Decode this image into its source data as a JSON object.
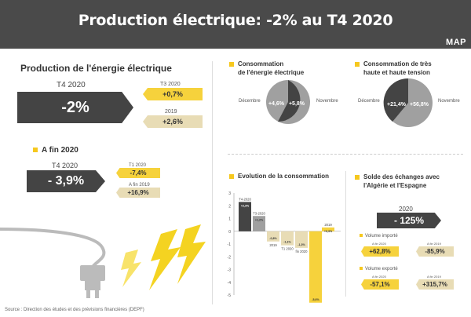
{
  "header": {
    "title": "Production électrique: -2% au T4 2020",
    "logo": "MAP"
  },
  "production": {
    "heading": "Production de l'énergie électrique",
    "period": "T4 2020",
    "value": "-2%",
    "compare1": {
      "label": "T3 2020",
      "value": "+0,7%"
    },
    "compare2": {
      "label": "2019",
      "value": "+2,6%"
    }
  },
  "afin": {
    "heading": "A fin 2020",
    "period": "T4 2020",
    "value": "- 3,9%",
    "compare1": {
      "label": "T1 2020",
      "value": "-7,4%"
    },
    "compare2": {
      "label": "A fin 2019",
      "value": "+16,9%"
    }
  },
  "conso": {
    "heading_line1": "Consommation",
    "heading_line2": "de l'énergie électrique",
    "left_label": "Décembre",
    "right_label": "Novembre",
    "left_value": "+4,6%",
    "right_value": "+5,8%"
  },
  "conso_tht": {
    "heading_line1": "Consommation de très",
    "heading_line2": "haute et haute tension",
    "left_label": "Décembre",
    "right_label": "Novembre",
    "left_value": "+21,4%",
    "right_value": "+56,8%"
  },
  "evolution": {
    "heading": "Evolution de la consommation",
    "chart_data": {
      "type": "bar",
      "categories": [
        "T4-2020",
        "T3-2020",
        "2019",
        "T1 2020",
        "fin 2020",
        "fin juin 2020",
        "2019"
      ],
      "values": [
        2.3,
        1.2,
        -0.8,
        -1.1,
        -1.3,
        -5.6,
        0.3
      ],
      "data_labels": [
        "+2,3%",
        "+1,2%",
        "-0,8%",
        "-1,1%",
        "-1,3%",
        "-5,6%",
        "+0,3%"
      ],
      "ylim": [
        -5,
        3
      ],
      "yticks": [
        "3",
        "2",
        "1",
        "0",
        "-1",
        "-2",
        "-3",
        "-4",
        "-5"
      ]
    }
  },
  "solde": {
    "heading_line1": "Solde des échanges avec",
    "heading_line2": "l'Algérie et l'Espagne",
    "period": "2020",
    "value": "- 125%",
    "imports": {
      "label": "Volume importé",
      "left_sub": "A fin 2020",
      "left_value": "+62,8%",
      "right_sub": "A fin 2019",
      "right_value": "-85,9%"
    },
    "exports": {
      "label": "Volume exporté",
      "left_sub": "A fin 2020",
      "left_value": "-57,1%",
      "right_sub": "A fin 2019",
      "right_value": "+315,7%"
    }
  },
  "colors": {
    "dark": "#444444",
    "yellow": "#f6d23c",
    "beige": "#e8dcb5",
    "gray": "#a0a0a0"
  },
  "icons": [
    "plug-icon",
    "lightning-icon"
  ],
  "source": "Source : Direction des études et des prévisions financières (DEPF)"
}
